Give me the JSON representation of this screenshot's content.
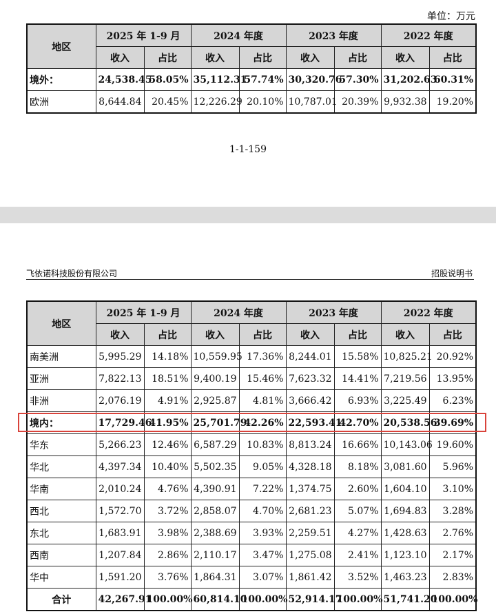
{
  "unit_label": "单位：万元",
  "page_number": "1-1-159",
  "running_header": {
    "company": "飞依诺科技股份有限公司",
    "doc_type": "招股说明书"
  },
  "header": {
    "region": "地区",
    "periods": [
      "2025 年 1-9 月",
      "2024 年度",
      "2023 年度",
      "2022 年度"
    ],
    "revenue": "收入",
    "share": "占比"
  },
  "table_top": {
    "rows": [
      {
        "name": "境外：",
        "bold": true,
        "cells": [
          "24,538.45",
          "58.05%",
          "35,112.31",
          "57.74%",
          "30,320.76",
          "57.30%",
          "31,202.63",
          "60.31%"
        ]
      },
      {
        "name": "欧洲",
        "bold": false,
        "cells": [
          "8,644.84",
          "20.45%",
          "12,226.29",
          "20.10%",
          "10,787.01",
          "20.39%",
          "9,932.38",
          "19.20%"
        ]
      }
    ]
  },
  "table_bottom": {
    "rows": [
      {
        "name": "南美洲",
        "bold": false,
        "cells": [
          "5,995.29",
          "14.18%",
          "10,559.95",
          "17.36%",
          "8,244.01",
          "15.58%",
          "10,825.21",
          "20.92%"
        ]
      },
      {
        "name": "亚洲",
        "bold": false,
        "cells": [
          "7,822.13",
          "18.51%",
          "9,400.19",
          "15.46%",
          "7,623.32",
          "14.41%",
          "7,219.56",
          "13.95%"
        ]
      },
      {
        "name": "非洲",
        "bold": false,
        "cells": [
          "2,076.19",
          "4.91%",
          "2,925.87",
          "4.81%",
          "3,666.42",
          "6.93%",
          "3,225.49",
          "6.23%"
        ]
      },
      {
        "name": "境内：",
        "bold": true,
        "cells": [
          "17,729.46",
          "41.95%",
          "25,701.79",
          "42.26%",
          "22,593.41",
          "42.70%",
          "20,538.56",
          "39.69%"
        ]
      },
      {
        "name": "华东",
        "bold": false,
        "cells": [
          "5,266.23",
          "12.46%",
          "6,587.29",
          "10.83%",
          "8,813.24",
          "16.66%",
          "10,143.06",
          "19.60%"
        ]
      },
      {
        "name": "华北",
        "bold": false,
        "cells": [
          "4,397.34",
          "10.40%",
          "5,502.35",
          "9.05%",
          "4,328.18",
          "8.18%",
          "3,081.60",
          "5.96%"
        ]
      },
      {
        "name": "华南",
        "bold": false,
        "cells": [
          "2,010.24",
          "4.76%",
          "4,390.91",
          "7.22%",
          "1,374.75",
          "2.60%",
          "1,604.10",
          "3.10%"
        ]
      },
      {
        "name": "西北",
        "bold": false,
        "cells": [
          "1,572.70",
          "3.72%",
          "2,858.07",
          "4.70%",
          "2,681.23",
          "5.07%",
          "1,694.83",
          "3.28%"
        ]
      },
      {
        "name": "东北",
        "bold": false,
        "cells": [
          "1,683.91",
          "3.98%",
          "2,388.69",
          "3.93%",
          "2,259.51",
          "4.27%",
          "1,428.63",
          "2.76%"
        ]
      },
      {
        "name": "西南",
        "bold": false,
        "cells": [
          "1,207.84",
          "2.86%",
          "2,110.17",
          "3.47%",
          "1,275.08",
          "2.41%",
          "1,123.10",
          "2.17%"
        ]
      },
      {
        "name": "华中",
        "bold": false,
        "cells": [
          "1,591.20",
          "3.76%",
          "1,864.31",
          "3.07%",
          "1,861.42",
          "3.52%",
          "1,463.23",
          "2.83%"
        ]
      },
      {
        "name": "合计",
        "bold": true,
        "total": true,
        "cells": [
          "42,267.91",
          "100.00%",
          "60,814.10",
          "100.00%",
          "52,914.17",
          "100.00%",
          "51,741.20",
          "100.00%"
        ]
      }
    ]
  },
  "highlight_color": "#d9433b"
}
